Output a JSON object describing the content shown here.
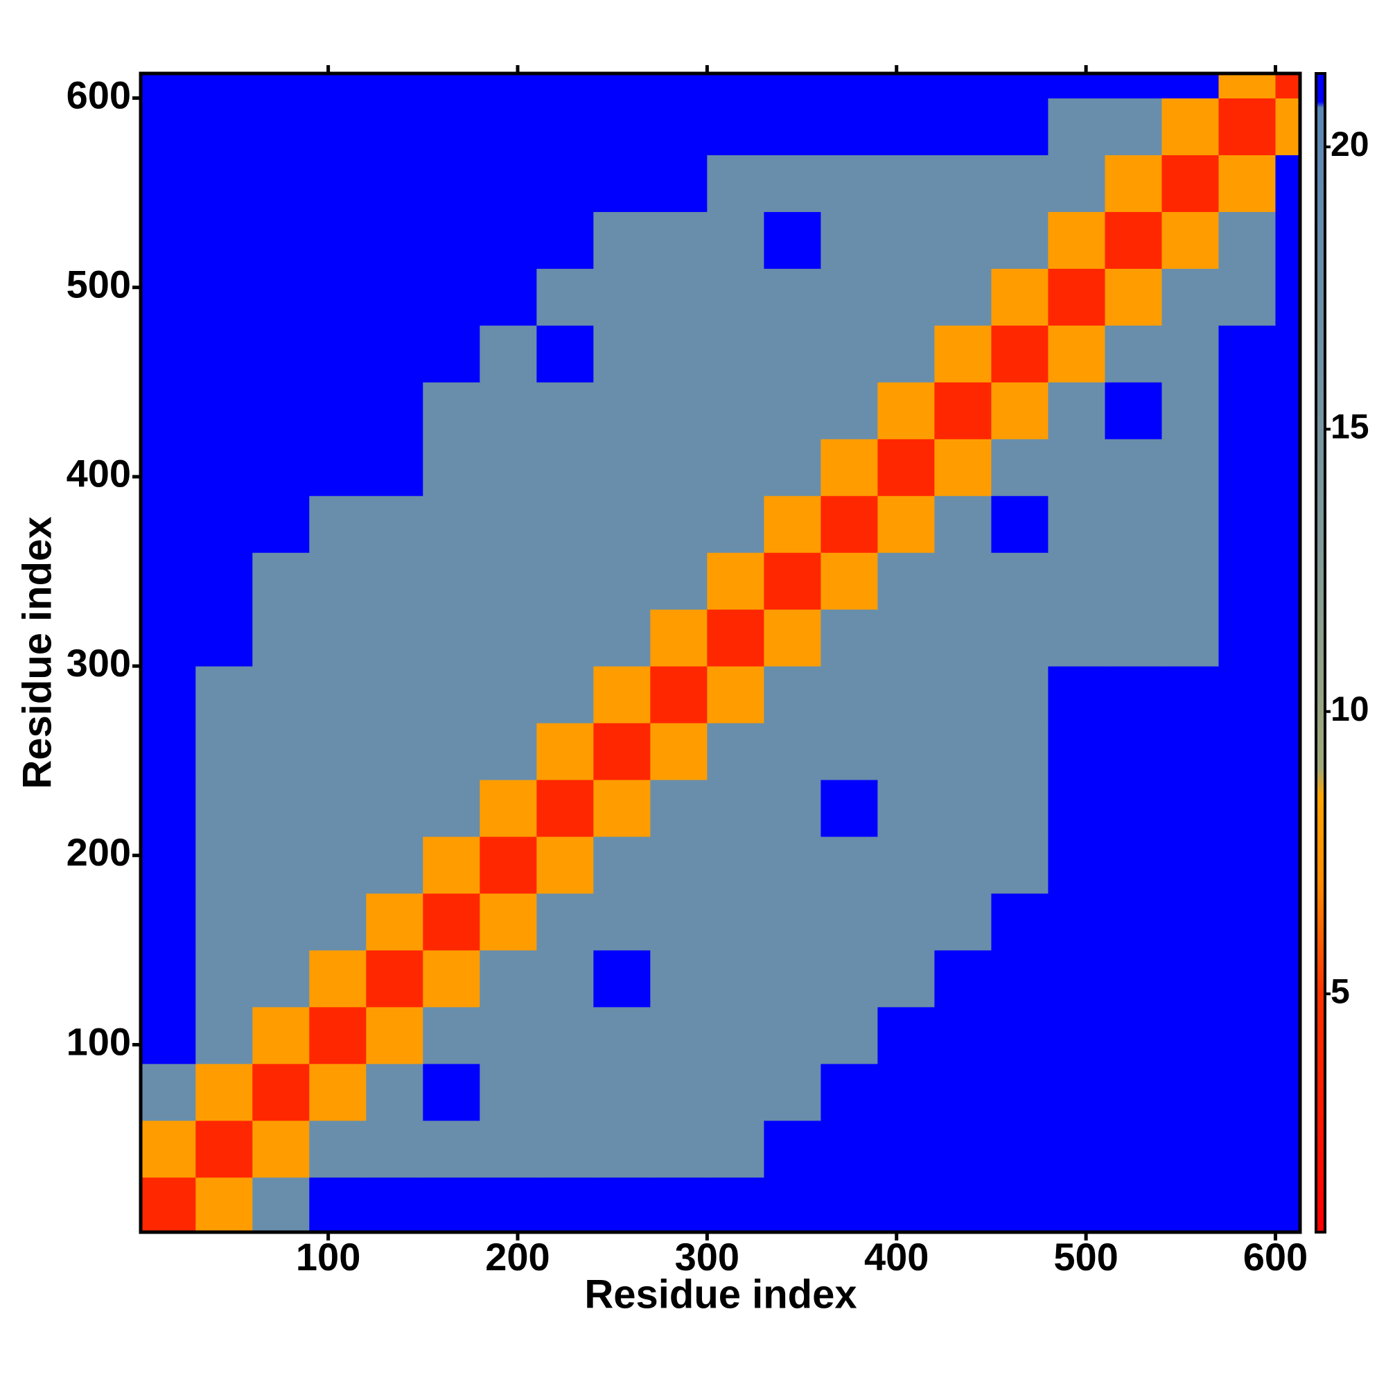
{
  "chart_data": {
    "type": "heatmap",
    "xlabel": "Residue index",
    "ylabel": "Residue index",
    "xlim": [
      1,
      613
    ],
    "ylim": [
      1,
      613
    ],
    "xticks": [
      100,
      200,
      300,
      400,
      500,
      600
    ],
    "yticks": [
      100,
      200,
      300,
      400,
      500,
      600
    ],
    "x_bins": [
      1,
      30,
      60,
      90,
      120,
      150,
      180,
      210,
      240,
      270,
      300,
      330,
      360,
      390,
      420,
      450,
      480,
      510,
      540,
      570,
      600,
      613
    ],
    "y_bins": [
      1,
      30,
      60,
      90,
      120,
      150,
      180,
      210,
      240,
      270,
      300,
      330,
      360,
      390,
      420,
      450,
      480,
      510,
      540,
      570,
      600,
      613
    ],
    "z": [
      [
        4,
        8,
        18,
        21,
        21,
        21,
        21,
        21,
        21,
        21,
        21,
        21,
        21,
        21,
        21,
        21,
        21,
        21,
        21,
        21,
        21
      ],
      [
        8,
        4,
        8,
        18,
        18,
        18,
        18,
        18,
        18,
        18,
        18,
        21,
        21,
        21,
        21,
        21,
        21,
        21,
        21,
        21,
        21
      ],
      [
        18,
        8,
        4,
        8,
        18,
        21,
        18,
        18,
        18,
        18,
        18,
        18,
        21,
        21,
        21,
        21,
        21,
        21,
        21,
        21,
        21
      ],
      [
        21,
        18,
        8,
        4,
        8,
        18,
        18,
        18,
        18,
        18,
        18,
        18,
        18,
        21,
        21,
        21,
        21,
        21,
        21,
        21,
        21
      ],
      [
        21,
        18,
        18,
        8,
        4,
        8,
        18,
        18,
        21,
        18,
        18,
        18,
        18,
        18,
        21,
        21,
        21,
        21,
        21,
        21,
        21
      ],
      [
        21,
        18,
        18,
        18,
        8,
        4,
        8,
        18,
        18,
        18,
        18,
        18,
        18,
        18,
        18,
        21,
        21,
        21,
        21,
        21,
        21
      ],
      [
        21,
        18,
        18,
        18,
        18,
        8,
        4,
        8,
        18,
        18,
        18,
        18,
        18,
        18,
        18,
        18,
        21,
        21,
        21,
        21,
        21
      ],
      [
        21,
        18,
        18,
        18,
        18,
        18,
        8,
        4,
        8,
        18,
        18,
        18,
        21,
        18,
        18,
        18,
        21,
        21,
        21,
        21,
        21
      ],
      [
        21,
        18,
        18,
        18,
        18,
        18,
        18,
        8,
        4,
        8,
        18,
        18,
        18,
        18,
        18,
        18,
        21,
        21,
        21,
        21,
        21
      ],
      [
        21,
        18,
        18,
        18,
        18,
        18,
        18,
        18,
        8,
        4,
        8,
        18,
        18,
        18,
        18,
        18,
        21,
        21,
        21,
        21,
        21
      ],
      [
        21,
        21,
        18,
        18,
        18,
        18,
        18,
        18,
        18,
        8,
        4,
        8,
        18,
        18,
        18,
        18,
        18,
        18,
        18,
        21,
        21
      ],
      [
        21,
        21,
        18,
        18,
        18,
        18,
        18,
        18,
        18,
        18,
        8,
        4,
        8,
        18,
        18,
        18,
        18,
        18,
        18,
        21,
        21
      ],
      [
        21,
        21,
        21,
        18,
        18,
        18,
        18,
        18,
        18,
        18,
        18,
        8,
        4,
        8,
        18,
        21,
        18,
        18,
        18,
        21,
        21
      ],
      [
        21,
        21,
        21,
        21,
        21,
        18,
        18,
        18,
        18,
        18,
        18,
        18,
        8,
        4,
        8,
        18,
        18,
        18,
        18,
        21,
        21
      ],
      [
        21,
        21,
        21,
        21,
        21,
        18,
        18,
        18,
        18,
        18,
        18,
        18,
        18,
        8,
        4,
        8,
        18,
        21,
        18,
        21,
        21
      ],
      [
        21,
        21,
        21,
        21,
        21,
        21,
        18,
        21,
        18,
        18,
        18,
        18,
        18,
        18,
        8,
        4,
        8,
        18,
        18,
        21,
        21
      ],
      [
        21,
        21,
        21,
        21,
        21,
        21,
        21,
        18,
        18,
        18,
        18,
        18,
        18,
        18,
        18,
        8,
        4,
        8,
        18,
        18,
        21
      ],
      [
        21,
        21,
        21,
        21,
        21,
        21,
        21,
        21,
        18,
        18,
        18,
        21,
        18,
        18,
        18,
        18,
        8,
        4,
        8,
        18,
        21
      ],
      [
        21,
        21,
        21,
        21,
        21,
        21,
        21,
        21,
        21,
        21,
        18,
        18,
        18,
        18,
        18,
        18,
        18,
        8,
        4,
        8,
        21
      ],
      [
        21,
        21,
        21,
        21,
        21,
        21,
        21,
        21,
        21,
        21,
        21,
        21,
        21,
        21,
        21,
        21,
        18,
        18,
        8,
        4,
        8
      ],
      [
        21,
        21,
        21,
        21,
        21,
        21,
        21,
        21,
        21,
        21,
        21,
        21,
        21,
        21,
        21,
        21,
        21,
        21,
        21,
        8,
        4
      ]
    ],
    "colorscale": [
      [
        0.78,
        "#ff0000"
      ],
      [
        5,
        "#ff3300"
      ],
      [
        7,
        "#ff8c00"
      ],
      [
        8.5,
        "#ffa500"
      ],
      [
        9,
        "#a0a878"
      ],
      [
        13,
        "#7f9a98"
      ],
      [
        20.7,
        "#5b87b5"
      ],
      [
        20.8,
        "#0000ff"
      ],
      [
        21.3,
        "#0000ff"
      ]
    ],
    "colorbar_lim": [
      0.78,
      21.3
    ],
    "colorbar_ticks": [
      5,
      10,
      15,
      20
    ]
  }
}
